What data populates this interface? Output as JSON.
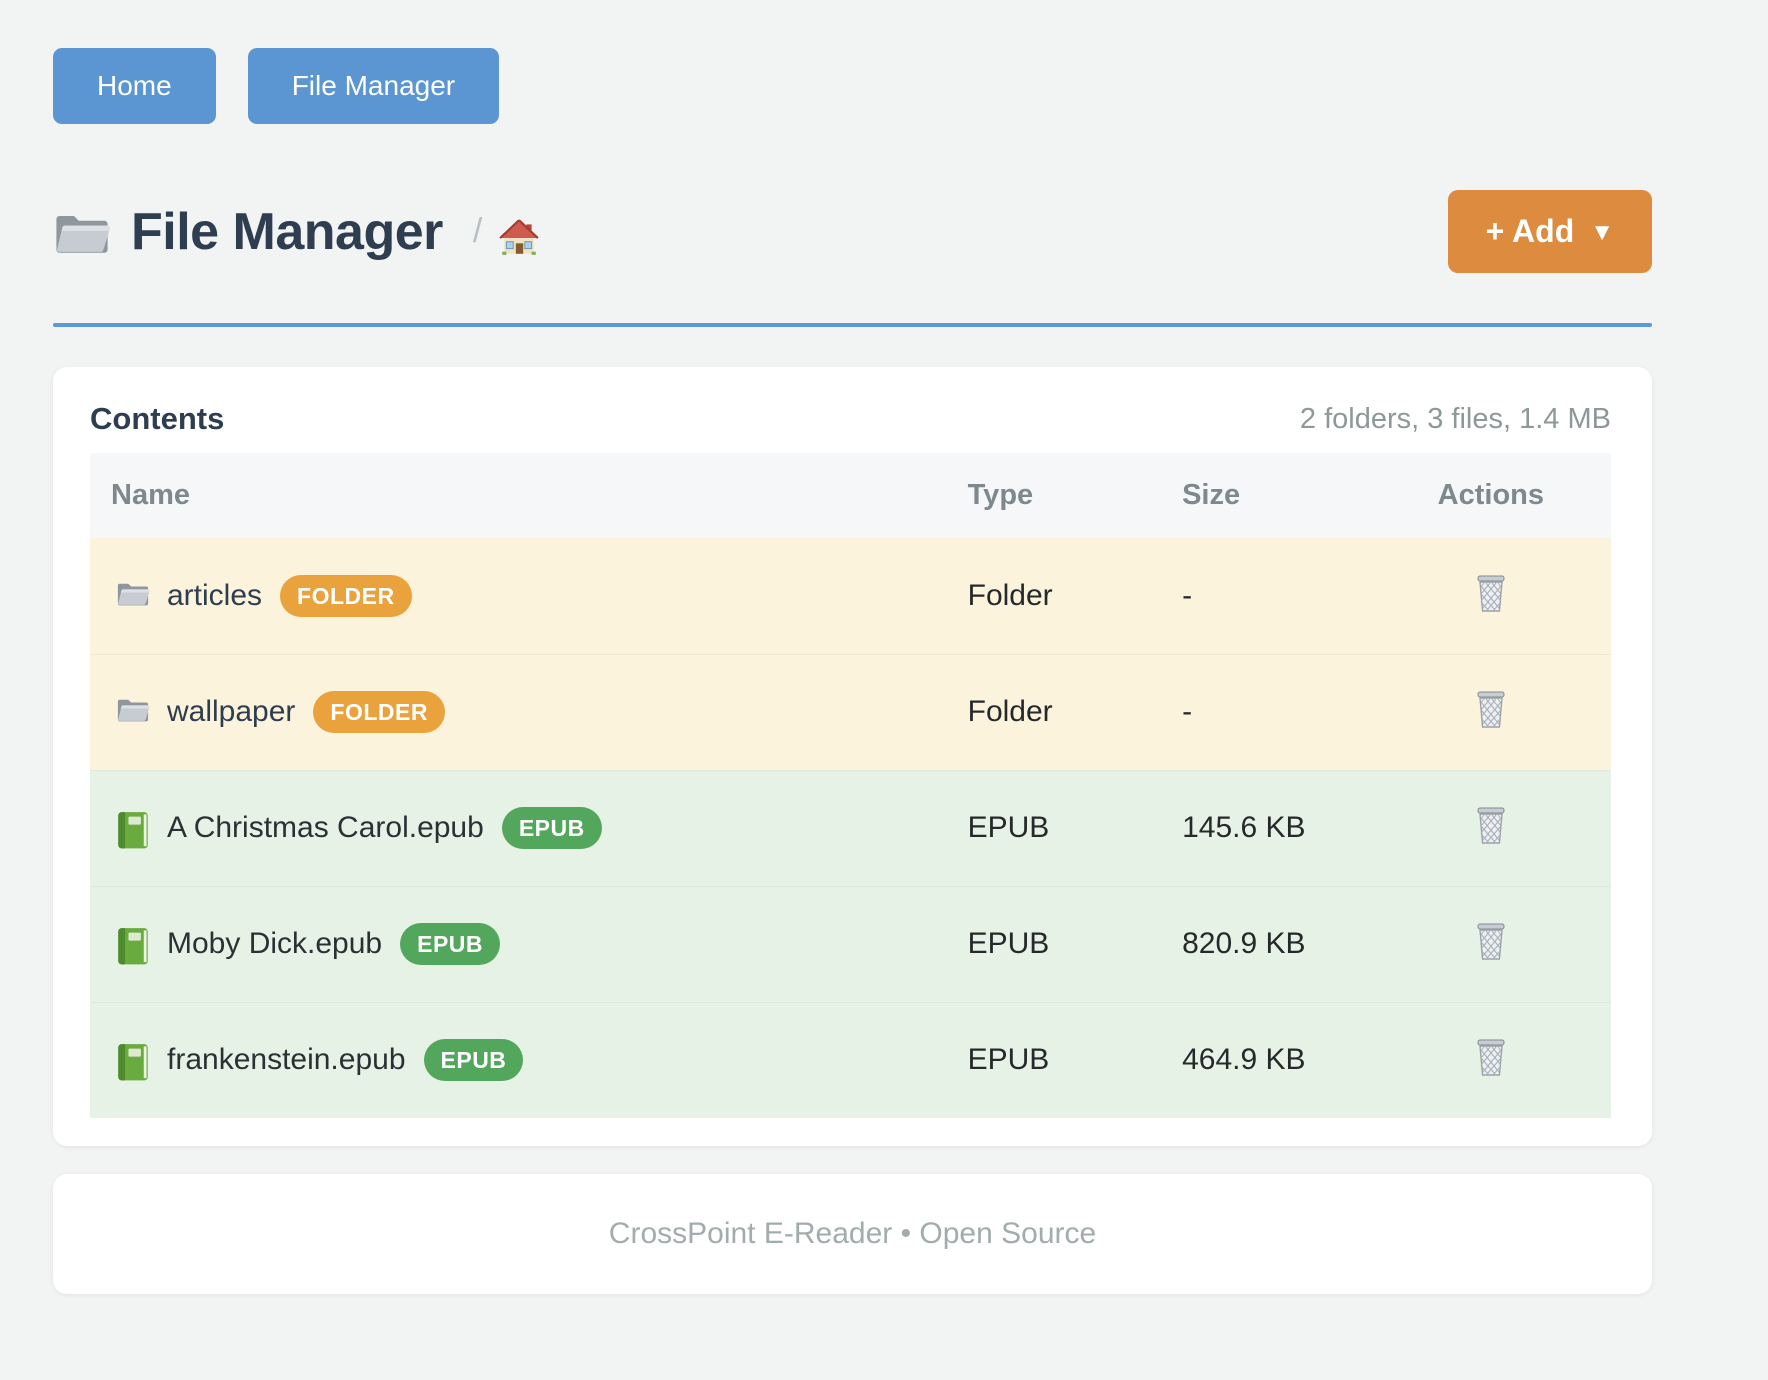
{
  "nav": {
    "home_label": "Home",
    "file_manager_label": "File Manager"
  },
  "header": {
    "title": "File Manager",
    "title_icon": "folder-icon",
    "breadcrumb_separator": "/",
    "breadcrumb_home_icon": "house-icon",
    "add_button_label": "+ Add",
    "add_button_caret": "▼"
  },
  "card": {
    "title": "Contents",
    "summary": "2 folders, 3 files, 1.4 MB"
  },
  "table": {
    "columns": [
      "Name",
      "Type",
      "Size",
      "Actions"
    ],
    "rows": [
      {
        "name": "articles",
        "badge": "FOLDER",
        "type": "Folder",
        "size": "-",
        "kind": "folder",
        "icon": "folder-icon",
        "action_icon": "trash-icon"
      },
      {
        "name": "wallpaper",
        "badge": "FOLDER",
        "type": "Folder",
        "size": "-",
        "kind": "folder",
        "icon": "folder-icon",
        "action_icon": "trash-icon"
      },
      {
        "name": "A Christmas Carol.epub",
        "badge": "EPUB",
        "type": "EPUB",
        "size": "145.6 KB",
        "kind": "epub",
        "icon": "book-icon",
        "action_icon": "trash-icon"
      },
      {
        "name": "Moby Dick.epub",
        "badge": "EPUB",
        "type": "EPUB",
        "size": "820.9 KB",
        "kind": "epub",
        "icon": "book-icon",
        "action_icon": "trash-icon"
      },
      {
        "name": "frankenstein.epub",
        "badge": "EPUB",
        "type": "EPUB",
        "size": "464.9 KB",
        "kind": "epub",
        "icon": "book-icon",
        "action_icon": "trash-icon"
      }
    ]
  },
  "footer": {
    "text": "CrossPoint E-Reader • Open Source"
  },
  "colors": {
    "accent_blue": "#5b96d3",
    "accent_rule_blue": "#5b9ad6",
    "accent_orange": "#dc8b3f",
    "badge_folder": "#e9a23c",
    "badge_epub": "#53a75d",
    "row_folder_bg": "#fcf3dc",
    "row_epub_bg": "#e7f2e6",
    "page_bg": "#f2f3f3"
  }
}
